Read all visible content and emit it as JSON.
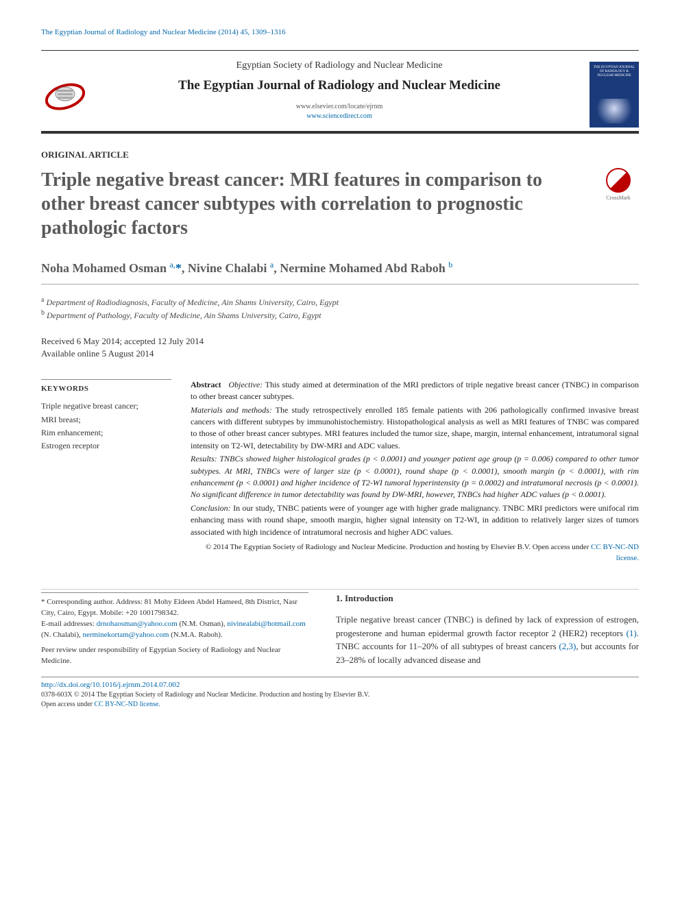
{
  "running_head": "The Egyptian Journal of Radiology and Nuclear Medicine (2014) 45, 1309–1316",
  "header": {
    "society": "Egyptian Society of Radiology and Nuclear Medicine",
    "journal": "The Egyptian Journal of Radiology and Nuclear Medicine",
    "url1": "www.elsevier.com/locate/ejrnm",
    "url2": "www.sciencedirect.com",
    "cover_text": "THE EGYPTIAN JOURNAL OF RADIOLOGY & NUCLEAR MEDICINE"
  },
  "article": {
    "type": "ORIGINAL ARTICLE",
    "title": "Triple negative breast cancer: MRI features in comparison to other breast cancer subtypes with correlation to prognostic pathologic factors",
    "crossmark": "CrossMark"
  },
  "authors_html": "Noha Mohamed Osman <sup>a,</sup><span class='corr'>*</span>, Nivine Chalabi <sup>a</sup>, Nermine Mohamed Abd Raboh <sup>b</sup>",
  "affiliations": [
    {
      "sup": "a",
      "text": "Department of Radiodiagnosis, Faculty of Medicine, Ain Shams University, Cairo, Egypt"
    },
    {
      "sup": "b",
      "text": "Department of Pathology, Faculty of Medicine, Ain Shams University, Cairo, Egypt"
    }
  ],
  "dates": {
    "line1": "Received 6 May 2014; accepted 12 July 2014",
    "line2": "Available online 5 August 2014"
  },
  "keywords": {
    "head": "KEYWORDS",
    "items": "Triple negative breast cancer;\nMRI breast;\nRim enhancement;\nEstrogen receptor"
  },
  "abstract": {
    "lead": "Abstract",
    "objective_label": "Objective:",
    "objective": "This study aimed at determination of the MRI predictors of triple negative breast cancer (TNBC) in comparison to other breast cancer subtypes.",
    "mm_label": "Materials and methods:",
    "mm": "The study retrospectively enrolled 185 female patients with 206 pathologically confirmed invasive breast cancers with different subtypes by immunohistochemistry. Histopathological analysis as well as MRI features of TNBC was compared to those of other breast cancer subtypes. MRI features included the tumor size, shape, margin, internal enhancement, intratumoral signal intensity on T2-WI, detectability by DW-MRI and ADC values.",
    "res_label": "Results:",
    "res": "TNBCs showed higher histological grades (p < 0.0001) and younger patient age group (p = 0.006) compared to other tumor subtypes. At MRI, TNBCs were of larger size (p < 0.0001), round shape (p < 0.0001), smooth margin (p < 0.0001), with rim enhancement (p < 0.0001) and higher incidence of T2-WI tumoral hyperintensity (p = 0.0002) and intratumoral necrosis (p < 0.0001). No significant difference in tumor detectability was found by DW-MRI, however, TNBCs had higher ADC values (p < 0.0001).",
    "con_label": "Conclusion:",
    "con": "In our study, TNBC patients were of younger age with higher grade malignancy. TNBC MRI predictors were unifocal rim enhancing mass with round shape, smooth margin, higher signal intensity on T2-WI, in addition to relatively larger sizes of tumors associated with high incidence of intratumoral necrosis and higher ADC values.",
    "copyright": "© 2014 The Egyptian Society of Radiology and Nuclear Medicine. Production and hosting by Elsevier B.V.",
    "oa_prefix": "Open access under ",
    "oa_link": "CC BY-NC-ND license."
  },
  "corresponding": {
    "star": "*",
    "label": "Corresponding author. Address: 81 Mohy Eldeen Abdel Hameed, 8th District, Nasr City, Cairo, Egypt. Mobile: +20 1001798342.",
    "emails_label": "E-mail addresses:",
    "emails": [
      {
        "addr": "drnohaosman@yahoo.com",
        "who": "(N.M. Osman),"
      },
      {
        "addr": "nivinealabi@hotmail.com",
        "who": "(N. Chalabi),"
      },
      {
        "addr": "nerminekortam@yahoo.com",
        "who": "(N.M.A. Raboh)."
      }
    ],
    "peer": "Peer review under responsibility of Egyptian Society of Radiology and Nuclear Medicine."
  },
  "intro": {
    "head": "1. Introduction",
    "body_pre": "Triple negative breast cancer (TNBC) is defined by lack of expression of estrogen, progesterone and human epidermal growth factor receptor 2 (HER2) receptors ",
    "cite1": "(1)",
    "body_mid": ". TNBC accounts for 11–20% of all subtypes of breast cancers ",
    "cite2": "(2,3)",
    "body_post": ", but accounts for 23–28% of locally advanced disease and"
  },
  "footer": {
    "doi": "http://dx.doi.org/10.1016/j.ejrnm.2014.07.002",
    "line": "0378-603X © 2014 The Egyptian Society of Radiology and Nuclear Medicine. Production and hosting by Elsevier B.V.",
    "oa_prefix": "Open access under ",
    "oa_link": "CC BY-NC-ND license."
  },
  "colors": {
    "link": "#0066aa",
    "title_gray": "#5a5a5a",
    "cover_bg": "#1a3a7a",
    "crossmark_red": "#b00000"
  }
}
